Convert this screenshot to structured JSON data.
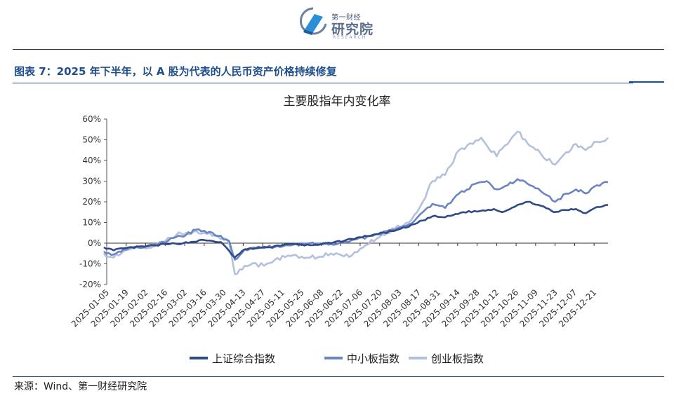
{
  "header": {
    "logo_small": "第一财经",
    "logo_big": "研究院",
    "logo_sub": "RESEARCH"
  },
  "figure": {
    "title": "图表 7：2025 年下半年，以 A 股为代表的人民币资产价格持续修复",
    "source": "来源：Wind、第一财经研究院"
  },
  "chart_data": {
    "type": "line",
    "title": "主要股指年内变化率",
    "xlabel": "",
    "ylabel": "",
    "x_ticks": [
      "2025-01-05",
      "2025-01-19",
      "2025-02-02",
      "2025-02-16",
      "2025-03-02",
      "2025-03-16",
      "2025-03-30",
      "2025-04-13",
      "2025-04-27",
      "2025-05-11",
      "2025-05-25",
      "2025-06-08",
      "2025-06-22",
      "2025-07-06",
      "2025-07-20",
      "2025-08-03",
      "2025-08-17",
      "2025-08-31",
      "2025-09-14",
      "2025-09-28",
      "2025-10-12",
      "2025-10-26",
      "2025-11-09",
      "2025-11-23",
      "2025-12-07",
      "2025-12-21"
    ],
    "y_ticks": [
      "60%",
      "50%",
      "40%",
      "30%",
      "20%",
      "10%",
      "0%",
      "-10%",
      "-20%"
    ],
    "ylim": [
      -20,
      60
    ],
    "xlim": [
      "2025-01-05",
      "2025-12-31"
    ],
    "legend_position": "bottom",
    "series": [
      {
        "name": "上证综合指数",
        "color": "#2e4a87",
        "points": [
          [
            "2025-01-03",
            -2
          ],
          [
            "2025-01-10",
            -3.5
          ],
          [
            "2025-01-17",
            -2.5
          ],
          [
            "2025-02-03",
            -1.5
          ],
          [
            "2025-02-17",
            -0.5
          ],
          [
            "2025-03-01",
            0
          ],
          [
            "2025-03-16",
            1.5
          ],
          [
            "2025-03-28",
            0.5
          ],
          [
            "2025-04-07",
            -7
          ],
          [
            "2025-04-14",
            -3
          ],
          [
            "2025-04-30",
            -2
          ],
          [
            "2025-05-15",
            -0.5
          ],
          [
            "2025-05-31",
            -1
          ],
          [
            "2025-06-15",
            0
          ],
          [
            "2025-06-30",
            2
          ],
          [
            "2025-07-15",
            4
          ],
          [
            "2025-07-31",
            6
          ],
          [
            "2025-08-10",
            8
          ],
          [
            "2025-08-20",
            11
          ],
          [
            "2025-08-27",
            13
          ],
          [
            "2025-09-05",
            12.5
          ],
          [
            "2025-09-18",
            15
          ],
          [
            "2025-09-30",
            15.5
          ],
          [
            "2025-10-10",
            16.5
          ],
          [
            "2025-10-16",
            15
          ],
          [
            "2025-10-27",
            18.5
          ],
          [
            "2025-11-05",
            20
          ],
          [
            "2025-11-13",
            18
          ],
          [
            "2025-11-22",
            15
          ],
          [
            "2025-12-01",
            16
          ],
          [
            "2025-12-08",
            16.5
          ],
          [
            "2025-12-15",
            14.5
          ],
          [
            "2025-12-23",
            17.5
          ],
          [
            "2025-12-31",
            18.5
          ]
        ]
      },
      {
        "name": "中小板指数",
        "color": "#6b85c2",
        "points": [
          [
            "2025-01-03",
            -4
          ],
          [
            "2025-01-10",
            -5.5
          ],
          [
            "2025-01-17",
            -3
          ],
          [
            "2025-01-27",
            -2
          ],
          [
            "2025-02-10",
            -1
          ],
          [
            "2025-02-24",
            3
          ],
          [
            "2025-03-03",
            4
          ],
          [
            "2025-03-10",
            6.5
          ],
          [
            "2025-03-16",
            6
          ],
          [
            "2025-03-26",
            3.5
          ],
          [
            "2025-04-03",
            1
          ],
          [
            "2025-04-07",
            -8
          ],
          [
            "2025-04-14",
            -3
          ],
          [
            "2025-04-30",
            -2
          ],
          [
            "2025-05-15",
            -1
          ],
          [
            "2025-05-31",
            0
          ],
          [
            "2025-06-15",
            -0.5
          ],
          [
            "2025-06-30",
            1.5
          ],
          [
            "2025-07-15",
            3.5
          ],
          [
            "2025-07-31",
            6.5
          ],
          [
            "2025-08-10",
            9
          ],
          [
            "2025-08-20",
            15
          ],
          [
            "2025-08-27",
            19
          ],
          [
            "2025-09-05",
            17
          ],
          [
            "2025-09-15",
            24
          ],
          [
            "2025-09-28",
            29
          ],
          [
            "2025-10-05",
            30
          ],
          [
            "2025-10-12",
            26
          ],
          [
            "2025-10-20",
            28
          ],
          [
            "2025-10-27",
            31
          ],
          [
            "2025-11-05",
            28
          ],
          [
            "2025-11-13",
            25
          ],
          [
            "2025-11-23",
            20
          ],
          [
            "2025-12-01",
            24
          ],
          [
            "2025-12-08",
            26
          ],
          [
            "2025-12-15",
            24
          ],
          [
            "2025-12-23",
            28
          ],
          [
            "2025-12-31",
            29.5
          ]
        ]
      },
      {
        "name": "创业板指数",
        "color": "#b3c1de",
        "points": [
          [
            "2025-01-03",
            -5
          ],
          [
            "2025-01-10",
            -7
          ],
          [
            "2025-01-17",
            -4
          ],
          [
            "2025-01-27",
            -2
          ],
          [
            "2025-02-10",
            -1
          ],
          [
            "2025-02-24",
            4
          ],
          [
            "2025-03-03",
            5
          ],
          [
            "2025-03-10",
            6
          ],
          [
            "2025-03-16",
            5
          ],
          [
            "2025-03-26",
            3
          ],
          [
            "2025-04-03",
            0
          ],
          [
            "2025-04-07",
            -15
          ],
          [
            "2025-04-14",
            -11
          ],
          [
            "2025-04-30",
            -10
          ],
          [
            "2025-05-15",
            -6
          ],
          [
            "2025-05-31",
            -7
          ],
          [
            "2025-06-15",
            -5
          ],
          [
            "2025-06-30",
            -6
          ],
          [
            "2025-07-10",
            -1
          ],
          [
            "2025-07-20",
            3
          ],
          [
            "2025-07-31",
            7
          ],
          [
            "2025-08-10",
            10
          ],
          [
            "2025-08-20",
            20
          ],
          [
            "2025-08-27",
            30
          ],
          [
            "2025-09-05",
            33
          ],
          [
            "2025-09-15",
            45
          ],
          [
            "2025-09-25",
            48
          ],
          [
            "2025-10-01",
            51
          ],
          [
            "2025-10-12",
            42
          ],
          [
            "2025-10-20",
            48
          ],
          [
            "2025-10-27",
            54
          ],
          [
            "2025-11-05",
            47
          ],
          [
            "2025-11-13",
            43
          ],
          [
            "2025-11-23",
            38
          ],
          [
            "2025-12-01",
            44
          ],
          [
            "2025-12-08",
            48
          ],
          [
            "2025-12-15",
            45
          ],
          [
            "2025-12-23",
            49
          ],
          [
            "2025-12-31",
            51
          ]
        ]
      }
    ]
  }
}
